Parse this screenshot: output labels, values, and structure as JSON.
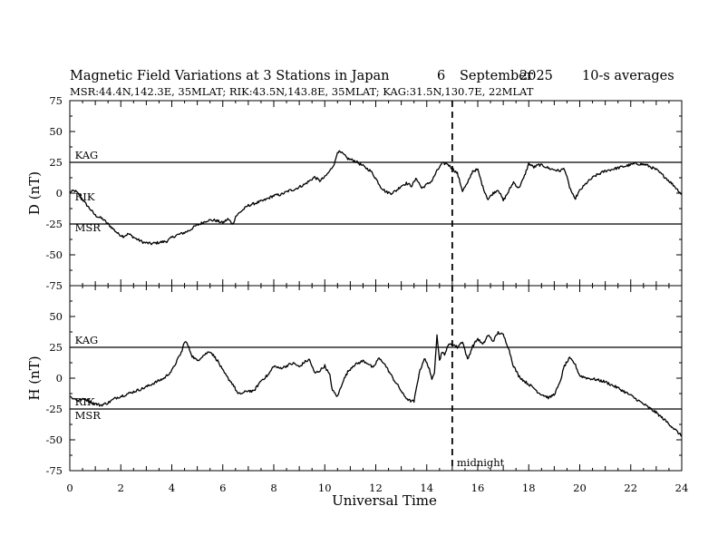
{
  "header": {
    "title": "Magnetic Field Variations at 3 Stations in Japan",
    "day": "6",
    "month": "September",
    "year": "2025",
    "averaging": "10-s averages",
    "stations_line": "MSR:44.4N,142.3E, 35MLAT;  RIK:43.5N,143.8E, 35MLAT;  KAG:31.5N,130.7E, 22MLAT"
  },
  "chart_data": {
    "type": "line",
    "xlabel": "Universal Time",
    "xlim": [
      0,
      24
    ],
    "xticks": [
      "0",
      "2",
      "4",
      "6",
      "8",
      "10",
      "12",
      "14",
      "16",
      "18",
      "20",
      "22",
      "24"
    ],
    "midnight": {
      "x": 15,
      "label": "midnight"
    },
    "panels": [
      {
        "id": "D",
        "ylabel": "D (nT)",
        "ylim": [
          -75,
          75
        ],
        "yticks": [
          "75",
          "50",
          "25",
          "0",
          "-25",
          "-50",
          "-75"
        ],
        "reference_lines": [
          {
            "station": "KAG",
            "y": 25
          },
          {
            "station": "MSR",
            "y": -25
          }
        ],
        "station_labels": [
          {
            "text": "KAG",
            "x": 0.2,
            "y": 28
          },
          {
            "text": "RIK",
            "x": 0.2,
            "y": -6
          },
          {
            "text": "MSR",
            "x": 0.2,
            "y": -31
          }
        ],
        "series": [
          {
            "name": "D",
            "x": [
              0,
              0.2,
              0.4,
              0.6,
              0.8,
              1.0,
              1.3,
              1.6,
              1.9,
              2.1,
              2.3,
              2.6,
              2.9,
              3.2,
              3.5,
              3.8,
              4.0,
              4.2,
              4.5,
              4.7,
              4.9,
              5.1,
              5.4,
              5.7,
              6.0,
              6.2,
              6.4,
              6.5,
              6.7,
              7.0,
              7.3,
              7.6,
              7.8,
              8.0,
              8.3,
              8.6,
              8.8,
              9.0,
              9.2,
              9.4,
              9.6,
              9.8,
              10.0,
              10.2,
              10.4,
              10.5,
              10.7,
              10.9,
              11.2,
              11.5,
              11.8,
              12.0,
              12.2,
              12.4,
              12.6,
              12.8,
              13.0,
              13.2,
              13.4,
              13.6,
              13.8,
              14.0,
              14.2,
              14.4,
              14.6,
              14.8,
              15.0,
              15.2,
              15.4,
              15.6,
              15.8,
              16.0,
              16.2,
              16.4,
              16.6,
              16.8,
              17.0,
              17.2,
              17.4,
              17.6,
              17.8,
              18.0,
              18.2,
              18.4,
              18.6,
              18.8,
              19.0,
              19.2,
              19.4,
              19.6,
              19.8,
              20.0,
              20.3,
              20.6,
              21.0,
              21.4,
              21.8,
              22.2,
              22.6,
              23.0,
              23.4,
              23.7,
              24.0
            ],
            "values": [
              1,
              2,
              -2,
              -8,
              -13,
              -18,
              -21,
              -27,
              -33,
              -35,
              -33,
              -37,
              -40,
              -41,
              -40,
              -39,
              -36,
              -34,
              -32,
              -30,
              -27,
              -25,
              -22,
              -22,
              -24,
              -21,
              -25,
              -19,
              -15,
              -10,
              -8,
              -6,
              -4,
              -2,
              -1,
              2,
              3,
              5,
              7,
              10,
              13,
              10,
              13,
              18,
              25,
              34,
              32,
              28,
              26,
              22,
              18,
              12,
              5,
              1,
              0,
              2,
              6,
              8,
              6,
              12,
              4,
              7,
              10,
              18,
              24,
              24,
              20,
              16,
              2,
              8,
              18,
              19,
              5,
              -5,
              0,
              3,
              -6,
              1,
              9,
              4,
              12,
              24,
              21,
              23,
              22,
              20,
              19,
              18,
              20,
              5,
              -5,
              2,
              9,
              14,
              18,
              20,
              22,
              24,
              23,
              19,
              12,
              6,
              -1
            ]
          }
        ]
      },
      {
        "id": "H",
        "ylabel": "H (nT)",
        "ylim": [
          -75,
          75
        ],
        "yticks": [
          "75",
          "50",
          "25",
          "0",
          "-25",
          "-50",
          "-75"
        ],
        "reference_lines": [
          {
            "station": "KAG",
            "y": 25
          },
          {
            "station": "MSR",
            "y": -25
          }
        ],
        "station_labels": [
          {
            "text": "KAG",
            "x": 0.2,
            "y": 28
          },
          {
            "text": "RIK",
            "x": 0.2,
            "y": -22
          },
          {
            "text": "MSR",
            "x": 0.2,
            "y": -33
          }
        ],
        "series": [
          {
            "name": "H",
            "x": [
              0,
              0.3,
              0.6,
              0.9,
              1.2,
              1.5,
              1.8,
              2.1,
              2.5,
              2.9,
              3.3,
              3.7,
              4.0,
              4.2,
              4.4,
              4.5,
              4.6,
              4.8,
              5.0,
              5.2,
              5.5,
              5.8,
              6.0,
              6.2,
              6.4,
              6.6,
              6.8,
              7.0,
              7.2,
              7.5,
              7.8,
              8.0,
              8.2,
              8.4,
              8.6,
              8.8,
              9.0,
              9.2,
              9.4,
              9.6,
              9.8,
              10.0,
              10.2,
              10.3,
              10.5,
              10.7,
              10.9,
              11.1,
              11.3,
              11.5,
              11.7,
              11.9,
              12.1,
              12.3,
              12.5,
              12.7,
              12.9,
              13.1,
              13.3,
              13.5,
              13.7,
              13.9,
              14.1,
              14.2,
              14.3,
              14.4,
              14.5,
              14.6,
              14.7,
              14.8,
              15.0,
              15.2,
              15.4,
              15.6,
              15.8,
              16.0,
              16.2,
              16.4,
              16.6,
              16.8,
              17.0,
              17.2,
              17.4,
              17.6,
              17.8,
              18.0,
              18.2,
              18.4,
              18.6,
              18.8,
              19.0,
              19.2,
              19.4,
              19.6,
              19.8,
              20.0,
              20.3,
              20.6,
              21.0,
              21.5,
              22.0,
              22.5,
              23.0,
              23.5,
              24.0
            ],
            "values": [
              -15,
              -18,
              -17,
              -20,
              -22,
              -20,
              -16,
              -14,
              -11,
              -8,
              -4,
              0,
              6,
              14,
              22,
              30,
              28,
              18,
              14,
              18,
              22,
              14,
              6,
              0,
              -5,
              -13,
              -12,
              -10,
              -11,
              -2,
              3,
              10,
              8,
              9,
              11,
              12,
              9,
              13,
              15,
              4,
              6,
              10,
              2,
              -10,
              -15,
              -3,
              5,
              10,
              12,
              14,
              12,
              8,
              16,
              13,
              6,
              -1,
              -7,
              -14,
              -18,
              -19,
              4,
              16,
              8,
              -2,
              5,
              36,
              14,
              22,
              18,
              26,
              28,
              25,
              30,
              15,
              26,
              32,
              27,
              35,
              30,
              37,
              35,
              25,
              10,
              2,
              -2,
              -5,
              -8,
              -12,
              -14,
              -16,
              -13,
              -5,
              10,
              16,
              12,
              2,
              0,
              -1,
              -3,
              -8,
              -14,
              -21,
              -28,
              -37,
              -47
            ]
          }
        ]
      }
    ]
  }
}
